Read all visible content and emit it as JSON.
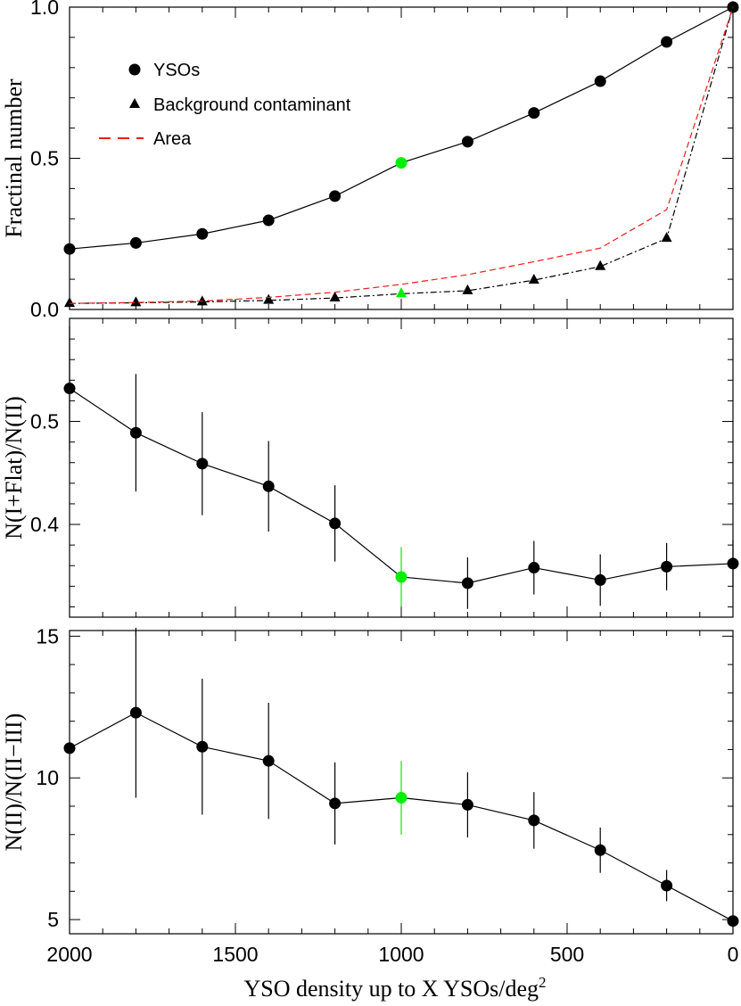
{
  "colors": {
    "black": "#000000",
    "highlight": "#00ee00",
    "area": "#ee1c1c"
  },
  "shared_x": {
    "label": "YSO density up to X YSOs/deg",
    "label_sup": "2",
    "range": [
      2000,
      0
    ],
    "ticks": [
      "2000",
      "1500",
      "1000",
      "500",
      "0"
    ]
  },
  "chart_data": [
    {
      "type": "line",
      "ylabel": "Fractinal number",
      "ylim": [
        0.0,
        1.0
      ],
      "yticks": [
        "0.0",
        "0.5",
        "1.0"
      ],
      "legend_position": "top-left",
      "highlight_x": 1000,
      "series": [
        {
          "name": "YSOs",
          "marker": "circle",
          "line": "solid",
          "x": [
            2000,
            1800,
            1600,
            1400,
            1200,
            1000,
            800,
            600,
            400,
            200,
            0
          ],
          "y": [
            0.2,
            0.22,
            0.25,
            0.295,
            0.375,
            0.485,
            0.555,
            0.65,
            0.755,
            0.885,
            1.0
          ]
        },
        {
          "name": "Background contaminant",
          "marker": "triangle",
          "line": "dashdot",
          "x": [
            2000,
            1800,
            1600,
            1400,
            1200,
            1000,
            800,
            600,
            400,
            200,
            0
          ],
          "y": [
            0.02,
            0.022,
            0.025,
            0.03,
            0.038,
            0.052,
            0.062,
            0.097,
            0.142,
            0.235,
            1.0
          ]
        },
        {
          "name": "Area",
          "marker": "none",
          "line": "dashed",
          "x": [
            2000,
            1800,
            1600,
            1400,
            1200,
            1000,
            800,
            600,
            400,
            200,
            0
          ],
          "y": [
            0.02,
            0.023,
            0.028,
            0.04,
            0.057,
            0.083,
            0.115,
            0.158,
            0.203,
            0.33,
            1.0
          ]
        }
      ]
    },
    {
      "type": "line",
      "ylabel": "N(I+Flat)/N(II)",
      "ylim": [
        0.31,
        0.6
      ],
      "yticks": [
        "0.4",
        "0.5"
      ],
      "highlight_x": 1000,
      "series": [
        {
          "marker": "circle",
          "x": [
            2000,
            1800,
            1600,
            1400,
            1200,
            1000,
            800,
            600,
            400,
            200,
            0
          ],
          "y": [
            0.532,
            0.489,
            0.459,
            0.437,
            0.401,
            0.349,
            0.343,
            0.358,
            0.346,
            0.359,
            0.362
          ],
          "err": [
            0.06,
            0.057,
            0.05,
            0.044,
            0.037,
            0.029,
            0.025,
            0.026,
            0.025,
            0.023,
            0.023
          ]
        }
      ]
    },
    {
      "type": "line",
      "ylabel": "N(II)/N(II−III)",
      "ylim": [
        4.5,
        15.2
      ],
      "yticks": [
        "5",
        "10",
        "15"
      ],
      "highlight_x": 1000,
      "series": [
        {
          "marker": "circle",
          "x": [
            2000,
            1800,
            1600,
            1400,
            1200,
            1000,
            800,
            600,
            400,
            200,
            0
          ],
          "y": [
            11.05,
            12.3,
            11.1,
            10.6,
            9.1,
            9.3,
            9.05,
            8.5,
            7.45,
            6.2,
            4.95
          ],
          "err": [
            0,
            3.0,
            2.4,
            2.05,
            1.45,
            1.3,
            1.15,
            1.0,
            0.8,
            0.55,
            0
          ]
        }
      ]
    }
  ]
}
